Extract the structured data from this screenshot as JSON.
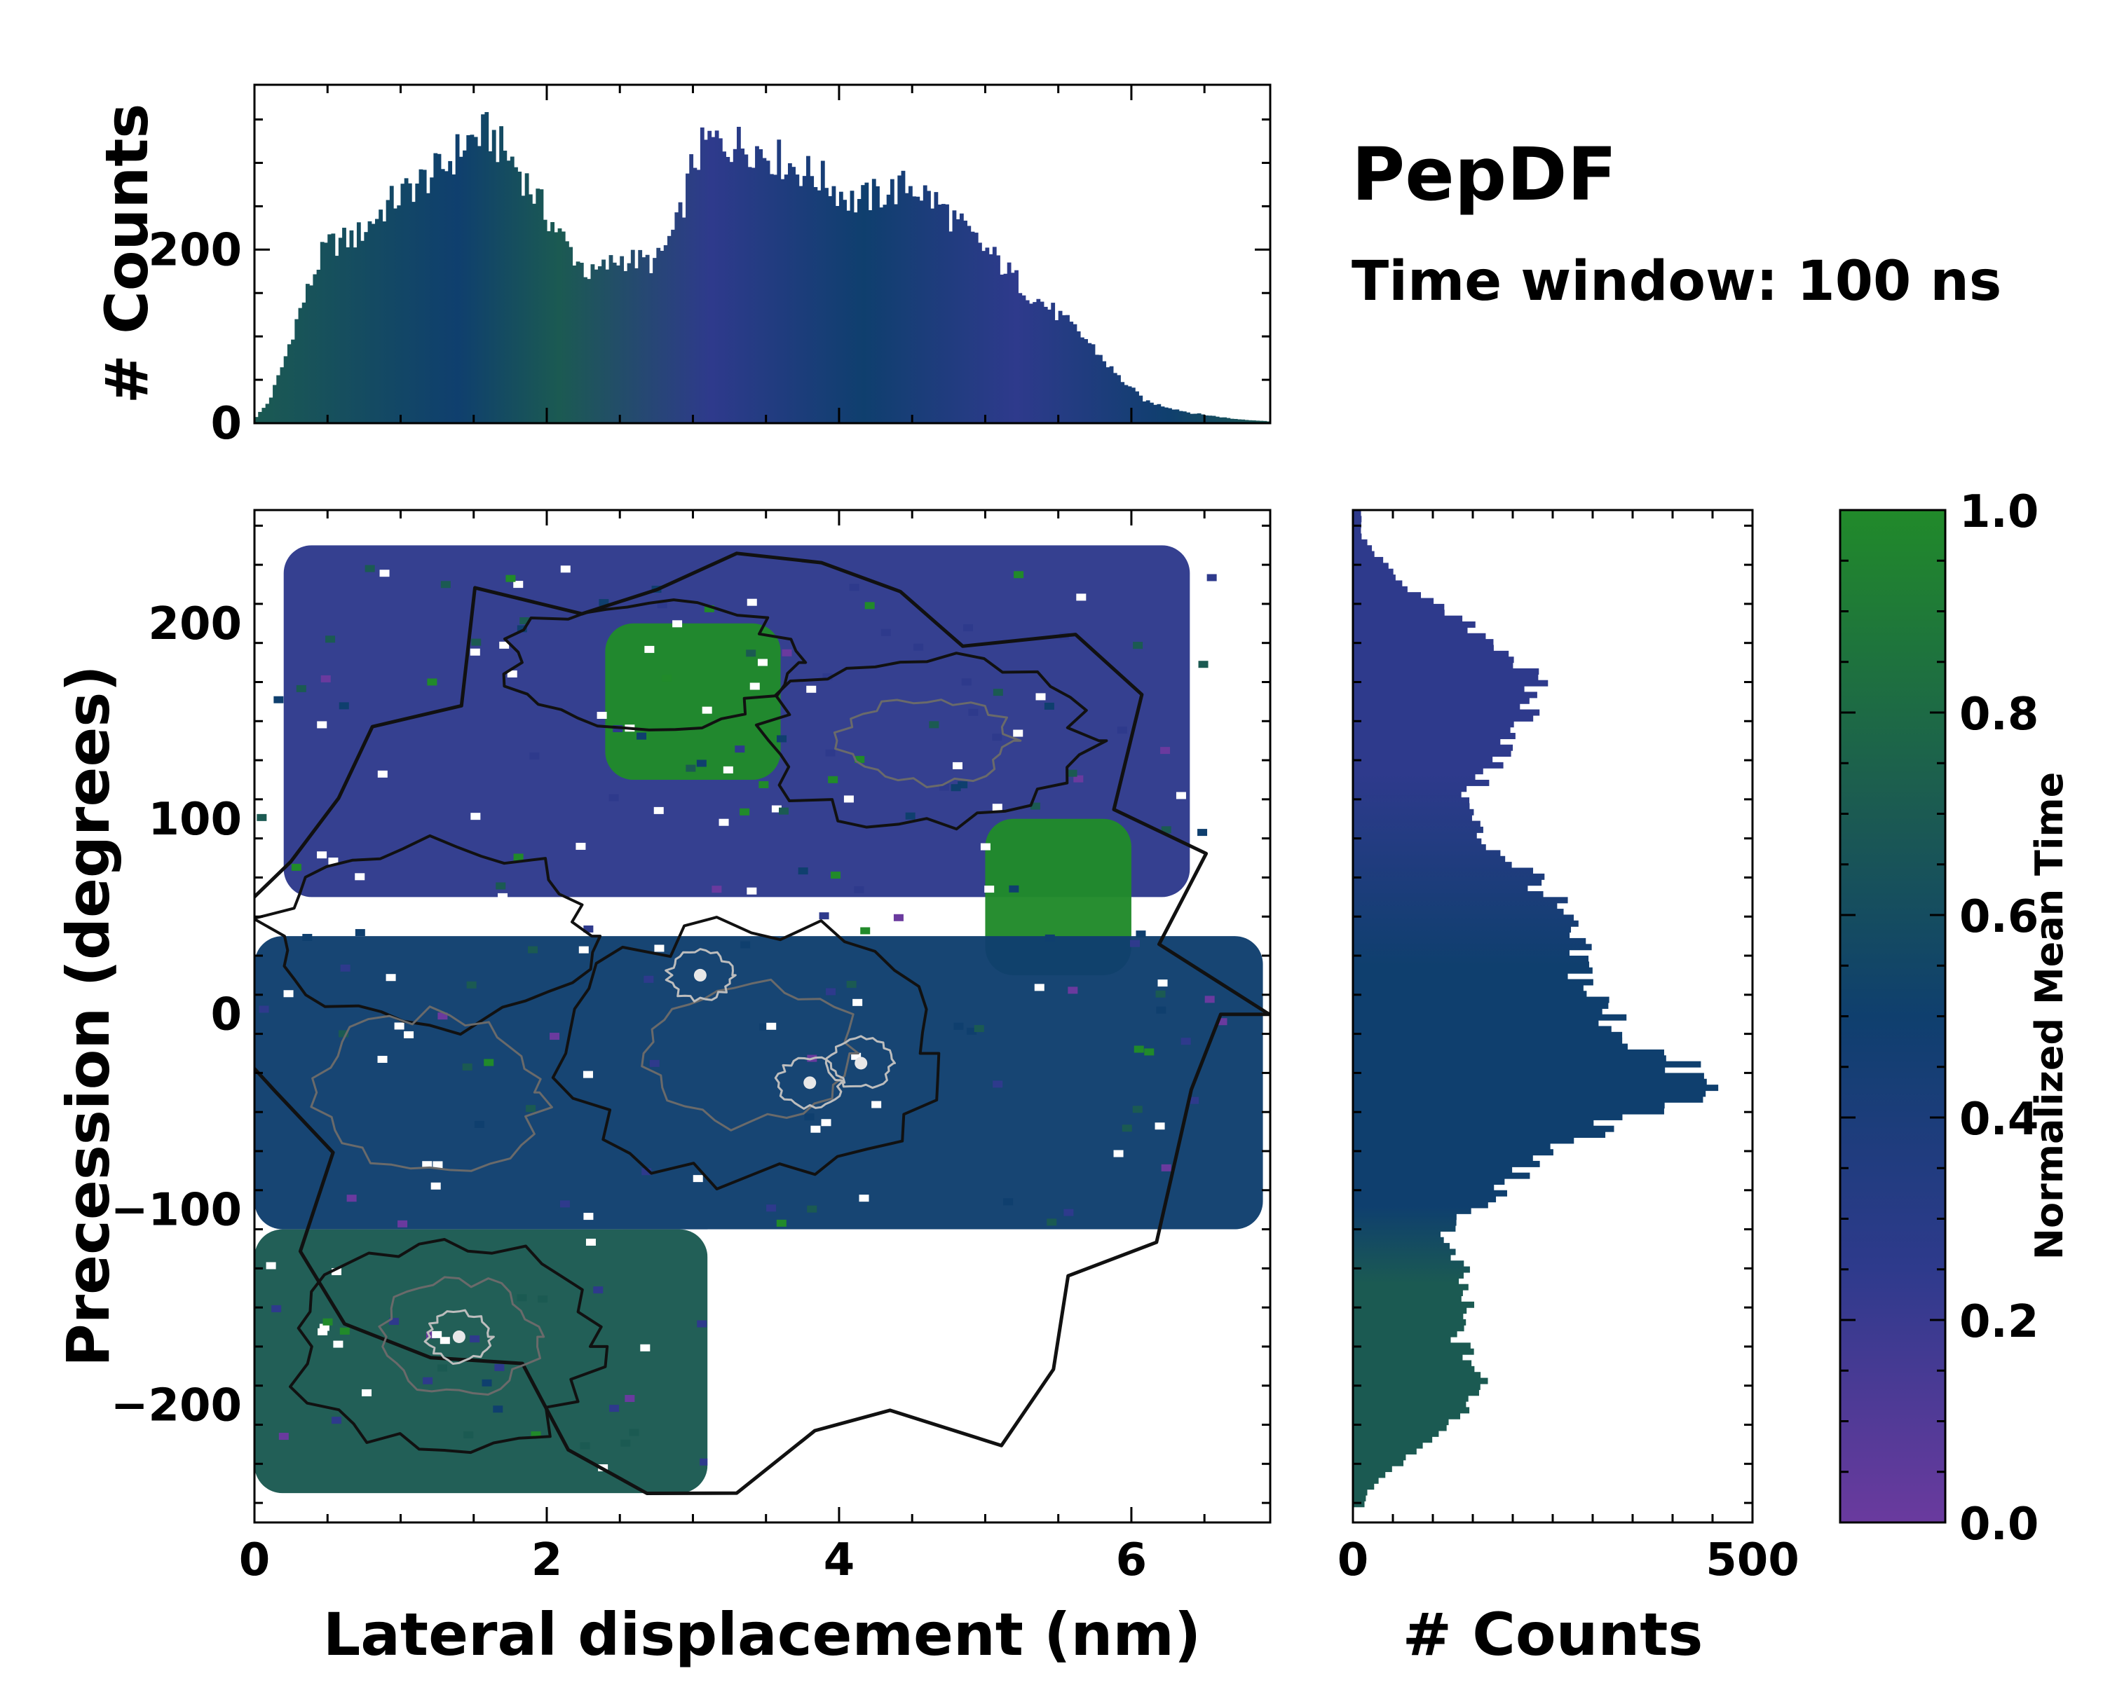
{
  "title": "PepDF",
  "subtitle": "Time window: 100 ns",
  "colors": {
    "purple": "#6a3a9e",
    "indigo": "#2e3a8c",
    "navy": "#0f3f6e",
    "teal": "#1b5a52",
    "green": "#218a2a",
    "contour_dark": "#111111",
    "contour_gray": "#6a6a6a"
  },
  "chart_data": [
    {
      "id": "joint",
      "type": "heatmap",
      "xlabel": "Lateral displacement (nm)",
      "ylabel": "Precession (degrees)",
      "xlim": [
        0,
        6.95
      ],
      "ylim": [
        -260,
        258
      ],
      "xticks": [
        0,
        2,
        4,
        6
      ],
      "yticks": [
        -200,
        -100,
        0,
        100,
        200
      ],
      "color_value": "Normalized Mean Time",
      "regions": [
        {
          "name": "purple upper band",
          "x": [
            0.2,
            6.4
          ],
          "y": [
            60,
            240
          ],
          "value": 0.15
        },
        {
          "name": "green upper patch",
          "x": [
            2.4,
            3.6
          ],
          "y": [
            120,
            200
          ],
          "value": 0.95
        },
        {
          "name": "green right patch",
          "x": [
            5.0,
            6.0
          ],
          "y": [
            20,
            100
          ],
          "value": 0.95
        },
        {
          "name": "blue central band",
          "x": [
            0.0,
            6.9
          ],
          "y": [
            -110,
            40
          ],
          "value": 0.4
        },
        {
          "name": "green lower patch",
          "x": [
            0.0,
            3.1
          ],
          "y": [
            -245,
            -110
          ],
          "value": 0.8
        }
      ],
      "density_peaks": [
        {
          "x": 3.05,
          "y": 20
        },
        {
          "x": 3.8,
          "y": -35
        },
        {
          "x": 4.15,
          "y": -25
        },
        {
          "x": 1.4,
          "y": -165
        }
      ]
    },
    {
      "id": "top_marginal",
      "type": "bar",
      "ylabel": "# Counts",
      "xlim": [
        0,
        6.95
      ],
      "ylim": [
        0,
        390
      ],
      "yticks": [
        0,
        200
      ],
      "bin_width": 0.025,
      "profile_x": [
        0,
        0.1,
        0.2,
        0.3,
        0.45,
        0.5,
        0.7,
        0.9,
        1.1,
        1.3,
        1.45,
        1.6,
        1.8,
        2.0,
        2.2,
        2.3,
        2.5,
        2.75,
        2.9,
        3.0,
        3.1,
        3.4,
        3.7,
        3.9,
        4.1,
        4.3,
        4.5,
        4.7,
        4.9,
        5.1,
        5.3,
        5.5,
        5.7,
        5.9,
        6.1,
        6.4,
        6.7,
        6.95
      ],
      "profile_counts": [
        5,
        25,
        70,
        125,
        190,
        205,
        215,
        250,
        275,
        295,
        325,
        335,
        295,
        240,
        190,
        170,
        190,
        185,
        230,
        300,
        325,
        320,
        295,
        280,
        255,
        265,
        275,
        250,
        215,
        185,
        150,
        125,
        95,
        55,
        25,
        12,
        5,
        2
      ]
    },
    {
      "id": "right_marginal",
      "type": "bar",
      "orientation": "horizontal",
      "xlabel": "# Counts",
      "xlim": [
        0,
        500
      ],
      "xticks": [
        0,
        500
      ],
      "ylim": [
        -260,
        258
      ],
      "bin_width": 3,
      "profile_y": [
        245,
        230,
        215,
        200,
        185,
        170,
        150,
        130,
        110,
        90,
        70,
        50,
        30,
        10,
        -10,
        -25,
        -40,
        -55,
        -70,
        -85,
        -100,
        -115,
        -130,
        -150,
        -165,
        -185,
        -200,
        -215,
        -230,
        -245
      ],
      "profile_counts": [
        10,
        40,
        80,
        140,
        200,
        225,
        220,
        180,
        140,
        160,
        230,
        260,
        280,
        300,
        340,
        400,
        450,
        330,
        240,
        200,
        150,
        110,
        135,
        140,
        130,
        160,
        150,
        110,
        60,
        15
      ]
    },
    {
      "id": "colorbar",
      "type": "colorbar",
      "label": "Normalized Mean Time",
      "range": [
        0.0,
        1.0
      ],
      "tick_labels": [
        "0.0",
        "0.2",
        "0.4",
        "0.6",
        "0.8",
        "1.0"
      ],
      "stops": [
        {
          "value": 0.0,
          "color": "#6a3a9e"
        },
        {
          "value": 0.25,
          "color": "#2e3a8c"
        },
        {
          "value": 0.5,
          "color": "#0f3f6e"
        },
        {
          "value": 0.7,
          "color": "#1b5a52"
        },
        {
          "value": 1.0,
          "color": "#218a2a"
        }
      ]
    }
  ]
}
